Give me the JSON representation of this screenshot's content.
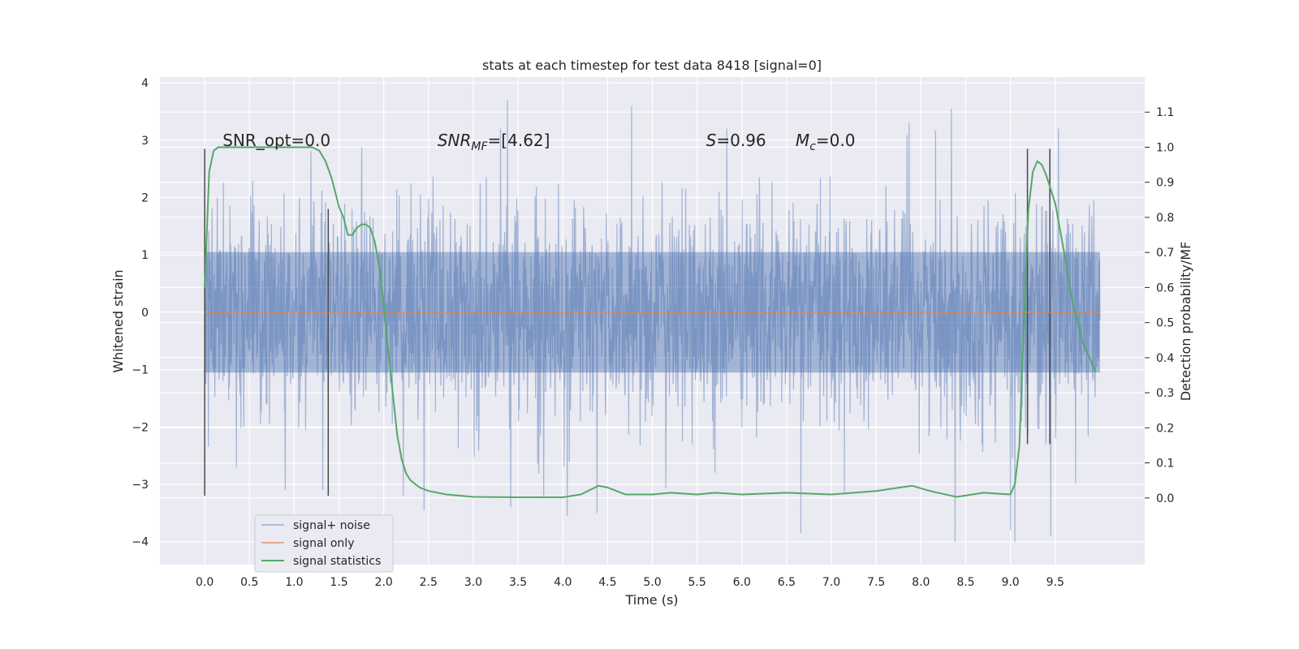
{
  "chart_data": {
    "type": "line",
    "title": "stats at each timestep for test data 8418 [signal=0]",
    "xlabel": "Time (s)",
    "ylabel": "Whitened strain",
    "y2label": "Detection probability/MF",
    "xlim": [
      -0.5,
      10.5
    ],
    "ylim": [
      -4.4,
      4.1
    ],
    "y2lim": [
      -0.19,
      1.2
    ],
    "xticks": [
      0.0,
      0.5,
      1.0,
      1.5,
      2.0,
      2.5,
      3.0,
      3.5,
      4.0,
      4.5,
      5.0,
      5.5,
      6.0,
      6.5,
      7.0,
      7.5,
      8.0,
      8.5,
      9.0,
      9.5
    ],
    "xtick_labels": [
      "0.0",
      "0.5",
      "1.0",
      "1.5",
      "2.0",
      "2.5",
      "3.0",
      "3.5",
      "4.0",
      "4.5",
      "5.0",
      "5.5",
      "6.0",
      "6.5",
      "7.0",
      "7.5",
      "8.0",
      "8.5",
      "9.0",
      "9.5"
    ],
    "yticks": [
      4,
      3,
      2,
      1,
      0,
      -1,
      -2,
      -3,
      -4
    ],
    "ytick_labels": [
      "4",
      "3",
      "2",
      "1",
      "0",
      "−1",
      "−2",
      "−3",
      "−4"
    ],
    "y2ticks": [
      1.1,
      1.0,
      0.9,
      0.8,
      0.7,
      0.6,
      0.5,
      0.4,
      0.3,
      0.2,
      0.1,
      0.0
    ],
    "y2tick_labels": [
      "1.1",
      "1.0",
      "0.9",
      "0.8",
      "0.7",
      "0.6",
      "0.5",
      "0.4",
      "0.3",
      "0.2",
      "0.1",
      "0.0"
    ],
    "grid": true,
    "legend_position": "lower-left",
    "legend": [
      "signal+ noise",
      "signal only",
      "signal statistics"
    ],
    "colors": {
      "noise": "#4c72b0",
      "signal": "#dd8452",
      "statistics": "#55a868",
      "markers": "#4a4a4a",
      "background": "#eaeaf2",
      "grid": "#ffffff"
    },
    "series": [
      {
        "name": "signal+ noise",
        "axis": "left",
        "typical_range": [
          -1.8,
          1.8
        ],
        "extreme_peaks": [
          [
            3.38,
            3.7
          ],
          [
            4.77,
            3.6
          ],
          [
            8.34,
            3.55
          ],
          [
            7.87,
            3.3
          ],
          [
            2.22,
            -3.2
          ],
          [
            2.45,
            -3.45
          ],
          [
            4.05,
            -3.55
          ],
          [
            4.38,
            -3.5
          ],
          [
            6.66,
            -3.85
          ],
          [
            8.38,
            -4.0
          ],
          [
            9.05,
            -4.0
          ],
          [
            9.0,
            -3.8
          ],
          [
            9.45,
            -3.9
          ],
          [
            3.42,
            -3.4
          ],
          [
            1.32,
            -3.1
          ],
          [
            0.9,
            -3.1
          ],
          [
            5.7,
            -2.8
          ]
        ]
      },
      {
        "name": "signal only",
        "axis": "left",
        "x": [
          0.0,
          10.0
        ],
        "y": [
          0.0,
          0.0
        ]
      },
      {
        "name": "signal statistics",
        "axis": "right",
        "x": [
          0.0,
          0.05,
          0.1,
          0.15,
          0.25,
          0.4,
          0.6,
          0.8,
          1.0,
          1.1,
          1.2,
          1.28,
          1.35,
          1.42,
          1.5,
          1.55,
          1.6,
          1.65,
          1.7,
          1.75,
          1.8,
          1.85,
          1.9,
          1.95,
          2.0,
          2.05,
          2.1,
          2.15,
          2.2,
          2.25,
          2.3,
          2.4,
          2.5,
          2.7,
          3.0,
          3.5,
          4.0,
          4.2,
          4.4,
          4.5,
          4.7,
          5.0,
          5.2,
          5.5,
          5.7,
          6.0,
          6.5,
          7.0,
          7.5,
          7.9,
          8.1,
          8.4,
          8.7,
          9.0,
          9.05,
          9.1,
          9.15,
          9.2,
          9.25,
          9.3,
          9.35,
          9.4,
          9.45,
          9.5,
          9.6,
          9.7,
          9.8,
          9.9,
          9.95
        ],
        "y": [
          0.6,
          0.93,
          0.99,
          1.0,
          1.0,
          1.0,
          1.0,
          1.0,
          1.0,
          1.0,
          1.0,
          0.99,
          0.96,
          0.91,
          0.83,
          0.8,
          0.75,
          0.75,
          0.77,
          0.78,
          0.78,
          0.77,
          0.73,
          0.66,
          0.55,
          0.42,
          0.3,
          0.18,
          0.11,
          0.07,
          0.05,
          0.03,
          0.02,
          0.01,
          0.003,
          0.002,
          0.002,
          0.01,
          0.035,
          0.03,
          0.01,
          0.01,
          0.015,
          0.01,
          0.015,
          0.01,
          0.015,
          0.01,
          0.02,
          0.035,
          0.02,
          0.003,
          0.015,
          0.01,
          0.04,
          0.15,
          0.5,
          0.82,
          0.93,
          0.96,
          0.95,
          0.92,
          0.88,
          0.84,
          0.7,
          0.55,
          0.45,
          0.39,
          0.36
        ]
      }
    ],
    "vertical_markers": [
      {
        "x": 0.0,
        "y": [
          -3.2,
          2.85
        ]
      },
      {
        "x": 1.38,
        "y": [
          -3.2,
          1.8
        ]
      },
      {
        "x": 9.19,
        "y": [
          -2.3,
          2.85
        ]
      },
      {
        "x": 9.44,
        "y": [
          -2.3,
          2.85
        ]
      }
    ],
    "annotations": [
      {
        "text": "SNR_opt=0.0",
        "x": 0.2,
        "y": 2.9
      },
      {
        "text": "SNR",
        "sub": "MF",
        "rest": "=[4.62]",
        "x": 2.6,
        "y": 2.9
      },
      {
        "text": "S",
        "rest": "=0.96",
        "x": 5.6,
        "y": 2.9
      },
      {
        "text": "M",
        "sub": "c",
        "rest": "=0.0",
        "x": 6.6,
        "y": 2.9
      }
    ]
  }
}
